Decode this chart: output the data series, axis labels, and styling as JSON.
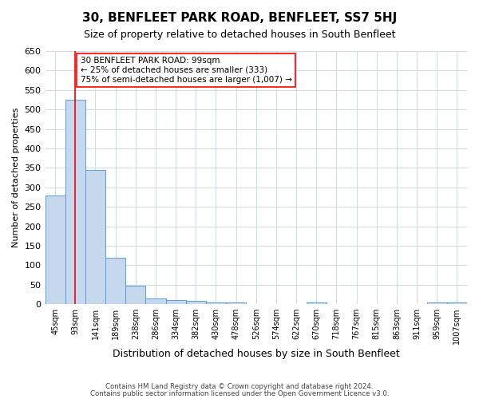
{
  "title": "30, BENFLEET PARK ROAD, BENFLEET, SS7 5HJ",
  "subtitle": "Size of property relative to detached houses in South Benfleet",
  "xlabel": "Distribution of detached houses by size in South Benfleet",
  "ylabel": "Number of detached properties",
  "bins": [
    "45sqm",
    "93sqm",
    "141sqm",
    "189sqm",
    "238sqm",
    "286sqm",
    "334sqm",
    "382sqm",
    "430sqm",
    "478sqm",
    "526sqm",
    "574sqm",
    "622sqm",
    "670sqm",
    "718sqm",
    "767sqm",
    "815sqm",
    "863sqm",
    "911sqm",
    "959sqm",
    "1007sqm"
  ],
  "values": [
    280,
    525,
    345,
    120,
    47,
    15,
    10,
    8,
    5,
    4,
    0,
    0,
    0,
    5,
    0,
    0,
    0,
    0,
    0,
    5,
    5
  ],
  "bar_color": "#c5d8ed",
  "bar_edge_color": "#5a9fd4",
  "annotation_line1": "30 BENFLEET PARK ROAD: 99sqm",
  "annotation_line2": "← 25% of detached houses are smaller (333)",
  "annotation_line3": "75% of semi-detached houses are larger (1,007) →",
  "red_line_x": 1,
  "ylim": [
    0,
    650
  ],
  "yticks": [
    0,
    50,
    100,
    150,
    200,
    250,
    300,
    350,
    400,
    450,
    500,
    550,
    600,
    650
  ],
  "footer_line1": "Contains HM Land Registry data © Crown copyright and database right 2024.",
  "footer_line2": "Contains public sector information licensed under the Open Government Licence v3.0.",
  "background_color": "#ffffff",
  "grid_color": "#d0dce8"
}
